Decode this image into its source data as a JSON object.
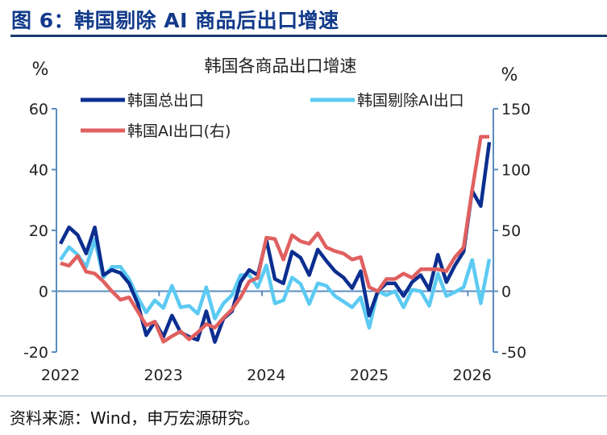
{
  "figure_title": "图 6：韩国剔除 AI 商品后出口增速",
  "source": "资料来源：Wind，申万宏源研究。",
  "colors": {
    "total": "#0b2e8f",
    "ex_ai": "#5ccaf2",
    "ai": "#e0605f",
    "axis": "#5b8dbf",
    "title": "#123a8a"
  },
  "chart_data": {
    "type": "line",
    "title": "韩国各商品出口增速",
    "ylabel_left": "%",
    "ylabel_right": "%",
    "ylim_left": [
      -20,
      60
    ],
    "ylim_right": [
      -50,
      150
    ],
    "yticks_left": [
      "60",
      "40",
      "20",
      "0",
      "-20"
    ],
    "yticks_right": [
      "150",
      "100",
      "50",
      "0",
      "-50"
    ],
    "xtick_labels": [
      "2022",
      "2023",
      "2024",
      "2025",
      "2026"
    ],
    "x_start": "2022-01",
    "x_frequency": "monthly",
    "grid": false,
    "legend_placement": "top",
    "series": [
      {
        "name": "韩国总出口",
        "axis": "left",
        "values": [
          15.6,
          21,
          18.5,
          12.4,
          21,
          5.3,
          7,
          6,
          2.6,
          -4,
          -14.5,
          -10,
          -15,
          -8,
          -13.5,
          -15,
          -16,
          -6.6,
          -16.7,
          -9,
          -6.6,
          3,
          7,
          5.3,
          17,
          4,
          2.6,
          13,
          11,
          5.3,
          13.7,
          10,
          6.6,
          4.5,
          1,
          6.6,
          -8,
          0,
          2.6,
          2.6,
          -1.6,
          3,
          5.3,
          0.5,
          12,
          3,
          8.5,
          13,
          33,
          28,
          49
        ]
      },
      {
        "name": "韩国剔除AI出口",
        "axis": "left",
        "values": [
          10.3,
          14.5,
          12,
          8,
          17,
          4.5,
          8,
          8,
          4,
          -2,
          -7,
          -3,
          -5.5,
          1.8,
          -5.3,
          -4.8,
          -7.4,
          1.3,
          -9,
          -4,
          -1.3,
          5.3,
          5.3,
          1.3,
          8.5,
          -4,
          -3,
          4.5,
          2.4,
          -4.2,
          2.6,
          1.8,
          -1.6,
          -3.4,
          -5.3,
          -2,
          -12,
          0,
          -1.3,
          0,
          -5.3,
          0.5,
          0,
          -4.8,
          5.8,
          -1.6,
          -0.3,
          1.3,
          10.3,
          -4,
          10.6
        ]
      },
      {
        "name": "韩国AI出口(右)",
        "axis": "right",
        "values": [
          23,
          21,
          29,
          16,
          14.5,
          8,
          0,
          -7,
          -5,
          -16.5,
          -28,
          -25,
          -41.6,
          -37,
          -33,
          -39.6,
          -34,
          -27,
          -30,
          -22,
          -15,
          -5,
          8,
          11,
          44,
          43,
          26,
          46,
          41,
          39,
          47.6,
          36,
          33,
          31,
          26,
          28,
          3.3,
          0,
          10,
          10,
          14.5,
          11,
          18,
          18,
          18,
          16.5,
          28,
          36,
          83,
          127,
          127
        ]
      }
    ]
  }
}
